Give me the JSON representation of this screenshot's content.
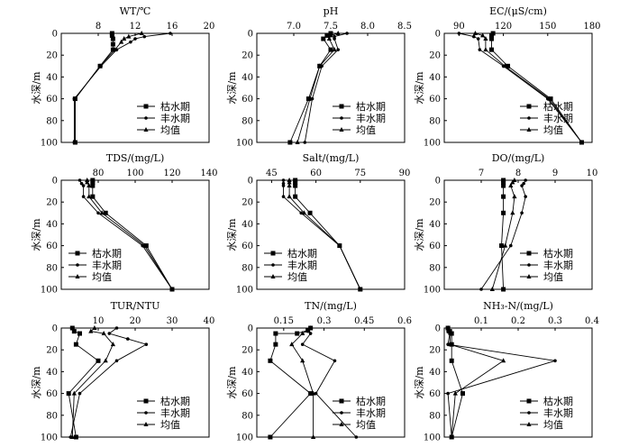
{
  "legend": [
    "枯水期",
    "丰水期",
    "均值"
  ],
  "chart_data": [
    {
      "type": "line",
      "title": "WT/℃",
      "ylabel": "水深/m",
      "xlim": [
        4,
        20
      ],
      "xticks": [
        8,
        12,
        16,
        20
      ],
      "ylim": [
        0,
        100
      ],
      "yticks": [
        0,
        20,
        40,
        60,
        80,
        100
      ],
      "legend_position": "right",
      "series": [
        {
          "name": "枯水期",
          "marker": "square",
          "points": [
            [
              9.5,
              0
            ],
            [
              9.5,
              2
            ],
            [
              9.6,
              5
            ],
            [
              9.6,
              10
            ],
            [
              9.6,
              15
            ],
            [
              8.2,
              30
            ],
            [
              5.5,
              60
            ],
            [
              5.5,
              100
            ]
          ]
        },
        {
          "name": "丰水期",
          "marker": "circle",
          "points": [
            [
              15.8,
              0
            ],
            [
              13,
              3
            ],
            [
              12,
              5
            ],
            [
              11.5,
              8
            ],
            [
              10,
              15
            ],
            [
              8.3,
              30
            ],
            [
              5.4,
              60
            ],
            [
              5.4,
              100
            ]
          ]
        },
        {
          "name": "均值",
          "marker": "triangle",
          "points": [
            [
              12.7,
              0
            ],
            [
              11.3,
              3
            ],
            [
              10.8,
              5
            ],
            [
              10.5,
              8
            ],
            [
              9.8,
              15
            ],
            [
              8.2,
              30
            ],
            [
              5.5,
              60
            ],
            [
              5.5,
              100
            ]
          ]
        }
      ]
    },
    {
      "type": "line",
      "title": "pH",
      "ylabel": "水深/m",
      "xlim": [
        6.5,
        8.5
      ],
      "xticks": [
        7.0,
        7.5,
        8.0,
        8.5
      ],
      "ylim": [
        0,
        100
      ],
      "yticks": [
        0,
        20,
        40,
        60,
        80,
        100
      ],
      "legend_position": "right",
      "series": [
        {
          "name": "枯水期",
          "marker": "square",
          "points": [
            [
              7.5,
              0
            ],
            [
              7.45,
              2
            ],
            [
              7.4,
              5
            ],
            [
              7.5,
              15
            ],
            [
              7.35,
              30
            ],
            [
              7.2,
              60
            ],
            [
              6.95,
              100
            ]
          ]
        },
        {
          "name": "丰水期",
          "marker": "circle",
          "points": [
            [
              7.72,
              0
            ],
            [
              7.55,
              3
            ],
            [
              7.55,
              5
            ],
            [
              7.6,
              15
            ],
            [
              7.38,
              30
            ],
            [
              7.25,
              60
            ],
            [
              7.15,
              100
            ]
          ]
        },
        {
          "name": "均值",
          "marker": "triangle",
          "points": [
            [
              7.6,
              0
            ],
            [
              7.5,
              2
            ],
            [
              7.48,
              5
            ],
            [
              7.55,
              15
            ],
            [
              7.35,
              30
            ],
            [
              7.22,
              60
            ],
            [
              7.05,
              100
            ]
          ]
        }
      ]
    },
    {
      "type": "line",
      "title": "EC/(μS/cm)",
      "ylabel": "水深/m",
      "xlim": [
        80,
        180
      ],
      "xticks": [
        90,
        120,
        150,
        180
      ],
      "ylim": [
        0,
        100
      ],
      "yticks": [
        0,
        20,
        40,
        60,
        80,
        100
      ],
      "legend_position": "right",
      "series": [
        {
          "name": "枯水期",
          "marker": "square",
          "points": [
            [
              113,
              0
            ],
            [
              112,
              2
            ],
            [
              112,
              5
            ],
            [
              112,
              15
            ],
            [
              123,
              30
            ],
            [
              152,
              60
            ],
            [
              173,
              100
            ]
          ]
        },
        {
          "name": "丰水期",
          "marker": "circle",
          "points": [
            [
              90,
              0
            ],
            [
              100,
              3
            ],
            [
              103,
              5
            ],
            [
              104,
              15
            ],
            [
              120,
              30
            ],
            [
              150,
              60
            ],
            [
              173,
              100
            ]
          ]
        },
        {
          "name": "均值",
          "marker": "triangle",
          "points": [
            [
              101,
              0
            ],
            [
              106,
              2
            ],
            [
              108,
              5
            ],
            [
              108,
              15
            ],
            [
              121,
              30
            ],
            [
              151,
              60
            ],
            [
              173,
              100
            ]
          ]
        }
      ]
    },
    {
      "type": "line",
      "title": "TDS/(mg/L)",
      "ylabel": "水深/m",
      "xlim": [
        60,
        140
      ],
      "xticks": [
        80,
        100,
        120,
        140
      ],
      "ylim": [
        0,
        100
      ],
      "yticks": [
        0,
        20,
        40,
        60,
        80,
        100
      ],
      "legend_position": "left",
      "series": [
        {
          "name": "枯水期",
          "marker": "square",
          "points": [
            [
              77,
              0
            ],
            [
              77,
              2
            ],
            [
              77,
              5
            ],
            [
              77,
              15
            ],
            [
              84,
              30
            ],
            [
              106,
              60
            ],
            [
              120,
              100
            ]
          ]
        },
        {
          "name": "丰水期",
          "marker": "circle",
          "points": [
            [
              70,
              0
            ],
            [
              71,
              3
            ],
            [
              72,
              5
            ],
            [
              72,
              15
            ],
            [
              80,
              30
            ],
            [
              104,
              60
            ],
            [
              120,
              100
            ]
          ]
        },
        {
          "name": "均值",
          "marker": "triangle",
          "points": [
            [
              74,
              0
            ],
            [
              74,
              2
            ],
            [
              75,
              5
            ],
            [
              75,
              15
            ],
            [
              82,
              30
            ],
            [
              105,
              60
            ],
            [
              120,
              100
            ]
          ]
        }
      ]
    },
    {
      "type": "line",
      "title": "Salt/(mg/L)",
      "ylabel": "水深/m",
      "xlim": [
        40,
        90
      ],
      "xticks": [
        45,
        60,
        75,
        90
      ],
      "ylim": [
        0,
        100
      ],
      "yticks": [
        0,
        20,
        40,
        60,
        80,
        100
      ],
      "legend_position": "left",
      "series": [
        {
          "name": "枯水期",
          "marker": "square",
          "points": [
            [
              53,
              0
            ],
            [
              53,
              2
            ],
            [
              53,
              5
            ],
            [
              53,
              15
            ],
            [
              58,
              30
            ],
            [
              68,
              60
            ],
            [
              75,
              100
            ]
          ]
        },
        {
          "name": "丰水期",
          "marker": "circle",
          "points": [
            [
              49,
              0
            ],
            [
              49,
              3
            ],
            [
              49,
              5
            ],
            [
              49,
              15
            ],
            [
              55,
              30
            ],
            [
              68,
              60
            ],
            [
              75,
              100
            ]
          ]
        },
        {
          "name": "均值",
          "marker": "triangle",
          "points": [
            [
              51,
              0
            ],
            [
              51,
              2
            ],
            [
              51,
              5
            ],
            [
              51,
              15
            ],
            [
              56,
              30
            ],
            [
              68,
              60
            ],
            [
              75,
              100
            ]
          ]
        }
      ]
    },
    {
      "type": "line",
      "title": "DO/(mg/L)",
      "ylabel": "水深/m",
      "xlim": [
        6,
        10
      ],
      "xticks": [
        7,
        8,
        9,
        10
      ],
      "ylim": [
        0,
        100
      ],
      "yticks": [
        0,
        20,
        40,
        60,
        80,
        100
      ],
      "legend_position": "right",
      "series": [
        {
          "name": "枯水期",
          "marker": "square",
          "points": [
            [
              7.6,
              0
            ],
            [
              7.6,
              2
            ],
            [
              7.6,
              5
            ],
            [
              7.6,
              15
            ],
            [
              7.6,
              30
            ],
            [
              7.55,
              60
            ],
            [
              7.6,
              100
            ]
          ]
        },
        {
          "name": "丰水期",
          "marker": "circle",
          "points": [
            [
              8.2,
              0
            ],
            [
              8.15,
              3
            ],
            [
              8.1,
              5
            ],
            [
              8.2,
              15
            ],
            [
              8.1,
              30
            ],
            [
              7.8,
              60
            ],
            [
              7.0,
              100
            ]
          ]
        },
        {
          "name": "均值",
          "marker": "triangle",
          "points": [
            [
              7.9,
              0
            ],
            [
              7.85,
              2
            ],
            [
              7.8,
              5
            ],
            [
              7.9,
              15
            ],
            [
              7.85,
              30
            ],
            [
              7.65,
              60
            ],
            [
              7.3,
              100
            ]
          ]
        }
      ]
    },
    {
      "type": "line",
      "title": "TUR/NTU",
      "ylabel": "水深/m",
      "xlim": [
        0,
        40
      ],
      "xticks": [
        10,
        20,
        30,
        40
      ],
      "ylim": [
        0,
        100
      ],
      "yticks": [
        0,
        20,
        40,
        60,
        80,
        100
      ],
      "legend_position": "right",
      "series": [
        {
          "name": "枯水期",
          "marker": "square",
          "points": [
            [
              3,
              0
            ],
            [
              3.5,
              3
            ],
            [
              5,
              5
            ],
            [
              4,
              15
            ],
            [
              10,
              30
            ],
            [
              2,
              60
            ],
            [
              4,
              100
            ]
          ]
        },
        {
          "name": "丰水期",
          "marker": "circle",
          "points": [
            [
              15,
              0
            ],
            [
              13,
              5
            ],
            [
              18,
              10
            ],
            [
              23,
              15
            ],
            [
              15,
              30
            ],
            [
              5,
              60
            ],
            [
              2.5,
              100
            ]
          ]
        },
        {
          "name": "均值",
          "marker": "triangle",
          "points": [
            [
              9,
              0
            ],
            [
              8,
              3
            ],
            [
              11.5,
              5
            ],
            [
              14,
              15
            ],
            [
              12,
              30
            ],
            [
              3.5,
              60
            ],
            [
              3,
              100
            ]
          ]
        }
      ]
    },
    {
      "type": "line",
      "title": "TN/(mg/L)",
      "ylabel": "水深/m",
      "xlim": [
        0.05,
        0.6
      ],
      "xticks": [
        0.15,
        0.3,
        0.45,
        0.6
      ],
      "ylim": [
        0,
        100
      ],
      "yticks": [
        0,
        20,
        40,
        60,
        80,
        100
      ],
      "legend_position": "right",
      "series": [
        {
          "name": "枯水期",
          "marker": "square",
          "points": [
            [
              0.25,
              0
            ],
            [
              0.24,
              2
            ],
            [
              0.2,
              5
            ],
            [
              0.12,
              5
            ],
            [
              0.12,
              15
            ],
            [
              0.1,
              30
            ],
            [
              0.25,
              60
            ],
            [
              0.1,
              100
            ]
          ]
        },
        {
          "name": "丰水期",
          "marker": "circle",
          "points": [
            [
              0.25,
              0
            ],
            [
              0.24,
              3
            ],
            [
              0.25,
              5
            ],
            [
              0.22,
              15
            ],
            [
              0.34,
              30
            ],
            [
              0.27,
              60
            ],
            [
              0.42,
              100
            ]
          ]
        },
        {
          "name": "均值",
          "marker": "triangle",
          "points": [
            [
              0.25,
              0
            ],
            [
              0.24,
              2
            ],
            [
              0.22,
              5
            ],
            [
              0.18,
              15
            ],
            [
              0.22,
              30
            ],
            [
              0.26,
              60
            ],
            [
              0.26,
              100
            ]
          ]
        }
      ]
    },
    {
      "type": "line",
      "title": "NH₃-N/(mg/L)",
      "ylabel": "水深/m",
      "xlim": [
        0,
        0.4
      ],
      "xticks": [
        0.1,
        0.2,
        0.3,
        0.4
      ],
      "ylim": [
        0,
        100
      ],
      "yticks": [
        0,
        20,
        40,
        60,
        80,
        100
      ],
      "legend_position": "right",
      "series": [
        {
          "name": "枯水期",
          "marker": "square",
          "points": [
            [
              0.01,
              0
            ],
            [
              0.015,
              3
            ],
            [
              0.02,
              5
            ],
            [
              0.02,
              15
            ],
            [
              0.02,
              30
            ],
            [
              0.05,
              60
            ],
            [
              0.02,
              100
            ]
          ]
        },
        {
          "name": "丰水期",
          "marker": "circle",
          "points": [
            [
              0.01,
              0
            ],
            [
              0.01,
              3
            ],
            [
              0.015,
              5
            ],
            [
              0.01,
              15
            ],
            [
              0.3,
              30
            ],
            [
              0.01,
              60
            ],
            [
              0.02,
              100
            ]
          ]
        },
        {
          "name": "均值",
          "marker": "triangle",
          "points": [
            [
              0.01,
              0
            ],
            [
              0.012,
              3
            ],
            [
              0.017,
              5
            ],
            [
              0.015,
              15
            ],
            [
              0.16,
              30
            ],
            [
              0.03,
              60
            ],
            [
              0.02,
              100
            ]
          ]
        }
      ]
    }
  ]
}
